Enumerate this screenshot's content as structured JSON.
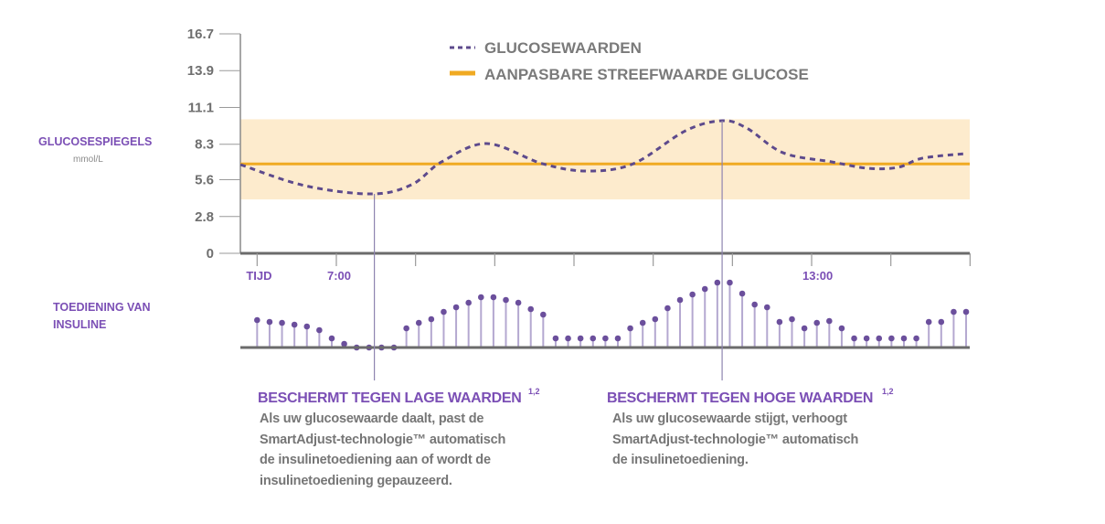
{
  "chart_data": {
    "type": "line",
    "legend": {
      "position": "top-center",
      "entries": [
        "GLUCOSEWAARDEN",
        "AANPASBARE STREEFWAARDE GLUCOSE"
      ]
    },
    "ylabel": "GLUCOSESPIEGELS",
    "yunit": "mmol/L",
    "y_ticks": [
      "16.7",
      "13.9",
      "11.1",
      "8.3",
      "5.6",
      "2.8",
      "0"
    ],
    "ylim": [
      0,
      16.7
    ],
    "xlim_hours": [
      5.8,
      15.0
    ],
    "x_tick_hours": [
      6,
      7,
      8,
      9,
      10,
      11,
      12,
      13,
      14,
      15
    ],
    "x_labels": [
      {
        "hour": 6,
        "text": "TIJD"
      },
      {
        "hour": 7,
        "text": "7:00"
      },
      {
        "hour": 13,
        "text": "13:00"
      }
    ],
    "target_range": [
      4.1,
      10.2
    ],
    "target_value": 6.8,
    "glucose_series": {
      "name": "GLUCOSEWAARDEN",
      "x": [
        5.79,
        6.6,
        7.45,
        7.95,
        8.33,
        8.9,
        9.6,
        10.17,
        10.75,
        11.41,
        11.87,
        12.18,
        12.64,
        13.25,
        13.71,
        14.09,
        14.4,
        14.95
      ],
      "y": [
        6.75,
        5.15,
        4.52,
        5.22,
        6.96,
        8.35,
        6.82,
        6.26,
        6.82,
        9.33,
        10.09,
        9.53,
        7.65,
        6.96,
        6.47,
        6.54,
        7.24,
        7.59
      ]
    },
    "insulin_series": {
      "name": "TOEDIENING VAN INSULINE",
      "x_start_hour": 6.0,
      "x_end_hour": 14.95,
      "values": [
        30,
        28,
        27,
        25,
        23,
        19,
        10,
        4,
        0,
        0,
        0,
        0,
        21,
        27,
        31,
        39,
        44,
        49,
        55,
        55,
        52,
        49,
        42,
        36,
        10,
        10,
        10,
        10,
        10,
        10,
        21,
        27,
        31,
        43,
        52,
        58,
        64,
        71,
        71,
        59,
        47,
        44,
        28,
        31,
        21,
        27,
        29,
        21,
        10,
        10,
        10,
        10,
        10,
        10,
        28,
        28,
        39,
        39
      ]
    },
    "annotation_hours": [
      7.48,
      11.87
    ]
  },
  "labels": {
    "glucose_title": "GLUCOSESPIEGELS",
    "glucose_unit": "mmol/L",
    "insulin_line1": "TOEDIENING VAN",
    "insulin_line2": "INSULINE"
  },
  "callouts": [
    {
      "title": "BESCHERMT TEGEN LAGE WAARDEN",
      "sup": "1,2",
      "lines": [
        "Als uw glucosewaarde daalt, past de",
        "SmartAdjust-technologie™ automatisch",
        "de insulinetoediening aan of wordt de",
        "insulinetoediening gepauzeerd."
      ]
    },
    {
      "title": "BESCHERMT TEGEN HOGE WAARDEN",
      "sup": "1,2",
      "lines": [
        "Als uw glucosewaarde stijgt, verhoogt",
        "SmartAdjust-technologie™ automatisch",
        "de insulinetoediening."
      ]
    }
  ],
  "colors": {
    "purple_text": "#7b4fb5",
    "glucose_line": "#5d4a8c",
    "target_line": "#f0aa22",
    "target_band": "#fdebcd",
    "stem": "#b4a8d0",
    "dot": "#6b4f9c",
    "axis": "#6b6b6b"
  }
}
